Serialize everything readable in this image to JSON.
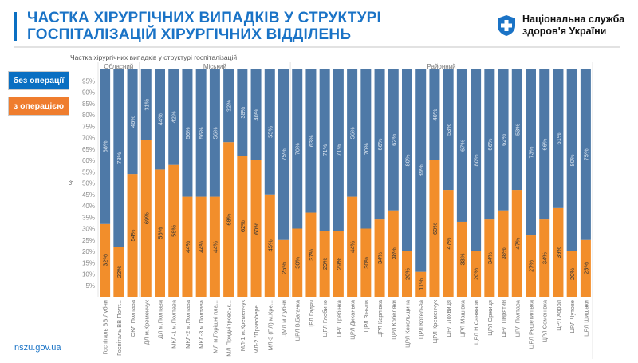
{
  "header": {
    "title_line1": "ЧАСТКА ХІРУРГІЧНИХ ВИПАДКІВ У СТРУКТУРІ",
    "title_line2": "ГОСПІТАЛІЗАЦІЙ ХІРУРГІЧНИХ ВІДДІЛЕНЬ",
    "logo_line1": "Національна служба",
    "logo_line2": "здоров'я України"
  },
  "legend": {
    "without": "без операції",
    "with": "з операцією"
  },
  "footer": {
    "site": "nszu.gov.ua"
  },
  "colors": {
    "without": "#4e79a7",
    "with": "#f28e2b"
  },
  "chart_data": {
    "type": "bar",
    "stacked": true,
    "title": "Частка хірургічних випадків у структурі госпіталізацій",
    "ylabel": "%",
    "ylim": [
      0,
      100
    ],
    "yticks": [
      "5%",
      "10%",
      "15%",
      "20%",
      "25%",
      "30%",
      "35%",
      "40%",
      "45%",
      "50%",
      "55%",
      "60%",
      "65%",
      "70%",
      "75%",
      "80%",
      "85%",
      "90%",
      "95%"
    ],
    "groups": [
      {
        "name": "Обласний",
        "count": 3
      },
      {
        "name": "Міський",
        "count": 11
      },
      {
        "name": "Районний",
        "count": 22
      }
    ],
    "categories": [
      "Госпіталь ВВ Лубни",
      "Госпіталь ВВ Полт...",
      "ОКЛ Полтава",
      "ДЛ м.Кременчук",
      "ДЛ м.Полтава",
      "МКЛ-1 м.Полтава",
      "МКЛ-2 м.Полтава",
      "МКЛ-3 м.Полтава",
      "МЛ м.Горішні пла...",
      "МЛ Придніпровськ...",
      "МЛ-1 м.Кременчук",
      "МЛ-2 \"Правобере...",
      "МЛ-3 (ПЛ) м.Кре...",
      "ЦМЛ м.Лубни",
      "ЦРЛ В.Багачка",
      "ЦРЛ Гадяч",
      "ЦРЛ Глобино",
      "ЦРЛ Гребінка",
      "ЦРЛ Диканька",
      "ЦРЛ Зіньків",
      "ЦРЛ Карлівка",
      "ЦРЛ Кобеляки",
      "ЦРЛ Козельщина",
      "ЦРЛ Котельва",
      "ЦРЛ Кременчук",
      "ЦРЛ Лохвиця",
      "ЦРЛ Машівка",
      "ЦРЛ Н.Санжари",
      "ЦРЛ Оржиця",
      "ЦРЛ Пирятин",
      "ЦРЛ Полтава",
      "ЦРЛ Решетилівка",
      "ЦРЛ Семенівка",
      "ЦРЛ Хорол",
      "ЦРЛ Чутове",
      "ЦРЛ Шишаки"
    ],
    "series": [
      {
        "name": "з операцією",
        "values": [
          32,
          22,
          54,
          69,
          56,
          58,
          44,
          44,
          44,
          68,
          62,
          60,
          45,
          25,
          30,
          37,
          29,
          29,
          44,
          30,
          34,
          38,
          20,
          11,
          60,
          47,
          33,
          20,
          34,
          38,
          47,
          27,
          34,
          39,
          20,
          25
        ]
      },
      {
        "name": "без операції",
        "values": [
          68,
          78,
          46,
          31,
          44,
          42,
          56,
          56,
          56,
          32,
          38,
          40,
          55,
          75,
          70,
          63,
          71,
          71,
          56,
          70,
          66,
          62,
          80,
          89,
          40,
          53,
          67,
          80,
          66,
          62,
          53,
          73,
          66,
          61,
          80,
          75
        ]
      }
    ]
  }
}
